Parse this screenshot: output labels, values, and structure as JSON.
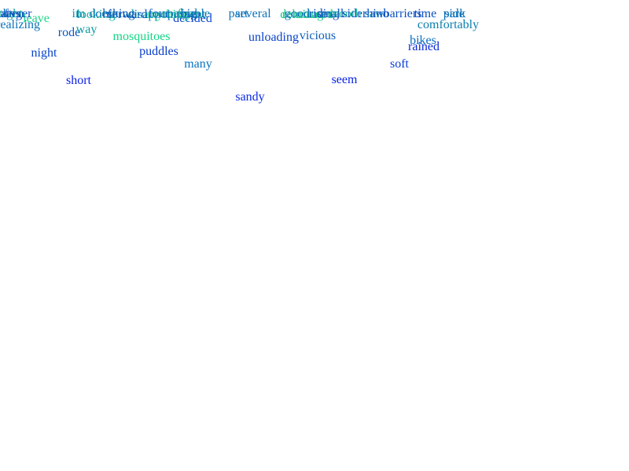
{
  "words": [
    {
      "text": "sandy",
      "color": "#0a2ae8"
    },
    {
      "text": "short",
      "color": "#0a1fe6"
    },
    {
      "text": "seem",
      "color": "#0a24e4"
    },
    {
      "text": "many",
      "color": "#0a72c0"
    },
    {
      "text": "soft",
      "color": "#0a3bd8"
    },
    {
      "text": "puddles",
      "color": "#0a3ec8"
    },
    {
      "text": "night",
      "color": "#0a43c8"
    },
    {
      "text": "rained",
      "color": "#0a28d8"
    },
    {
      "text": "unloading",
      "color": "#0a44c8"
    },
    {
      "text": "mosquitoes",
      "color": "#12d684"
    },
    {
      "text": "vicious",
      "color": "#0c5fba"
    },
    {
      "text": "bikes",
      "color": "#0a6cc0"
    },
    {
      "text": "comfortably",
      "color": "#0c7fb0"
    },
    {
      "text": "realizing",
      "color": "#0c74ba"
    },
    {
      "text": "rode",
      "color": "#0a56c6"
    },
    {
      "text": "way",
      "color": "#0c9aa0"
    },
    {
      "text": "decided",
      "color": "#0a46c8"
    },
    {
      "text": "leave",
      "color": "#1cd68a"
    },
    {
      "text": "anything",
      "color": "#22d68e"
    },
    {
      "text": "disappointment",
      "color": "#0c9aa6"
    },
    {
      "text": "forward",
      "color": "#0c58c2"
    },
    {
      "text": "dominated",
      "color": "#1ac88e"
    },
    {
      "text": "relaxing",
      "color": "#1ac88e"
    },
    {
      "text": "looking",
      "color": "#14b4a0"
    },
    {
      "text": "larger",
      "color": "#0c4ac6"
    },
    {
      "text": "often",
      "color": "#0c50c0"
    },
    {
      "text": "biking",
      "color": "#0c5ab8"
    },
    {
      "text": "passable",
      "color": "#0c78b4"
    },
    {
      "text": "five",
      "color": "#1ab89a"
    },
    {
      "text": "big",
      "color": "#0a56c6"
    },
    {
      "text": "four",
      "color": "#0a56c6"
    },
    {
      "text": "tight",
      "color": "#1ab49e"
    },
    {
      "text": "atvs",
      "color": "#0c50c0"
    },
    {
      "text": "t",
      "color": "#0c50c0"
    },
    {
      "text": "im",
      "color": "#1290ae"
    },
    {
      "text": "doesn",
      "color": "#0c72b8"
    },
    {
      "text": "part",
      "color": "#0c72b8"
    },
    {
      "text": "several",
      "color": "#0c72b8"
    },
    {
      "text": "good",
      "color": "#0c72b8"
    },
    {
      "text": "riding",
      "color": "#0c50c0"
    },
    {
      "text": "smooth",
      "color": "#1cc89a"
    },
    {
      "text": "siderhino",
      "color": "#0c50c0"
    },
    {
      "text": "small",
      "color": "#0c58bc"
    },
    {
      "text": "saw",
      "color": "#0c72b8"
    },
    {
      "text": "barriers",
      "color": "#0c50c0"
    },
    {
      "text": "time",
      "color": "#0c50c0"
    },
    {
      "text": "side",
      "color": "#0c72b8"
    },
    {
      "text": "park",
      "color": "#0c72b8"
    }
  ]
}
